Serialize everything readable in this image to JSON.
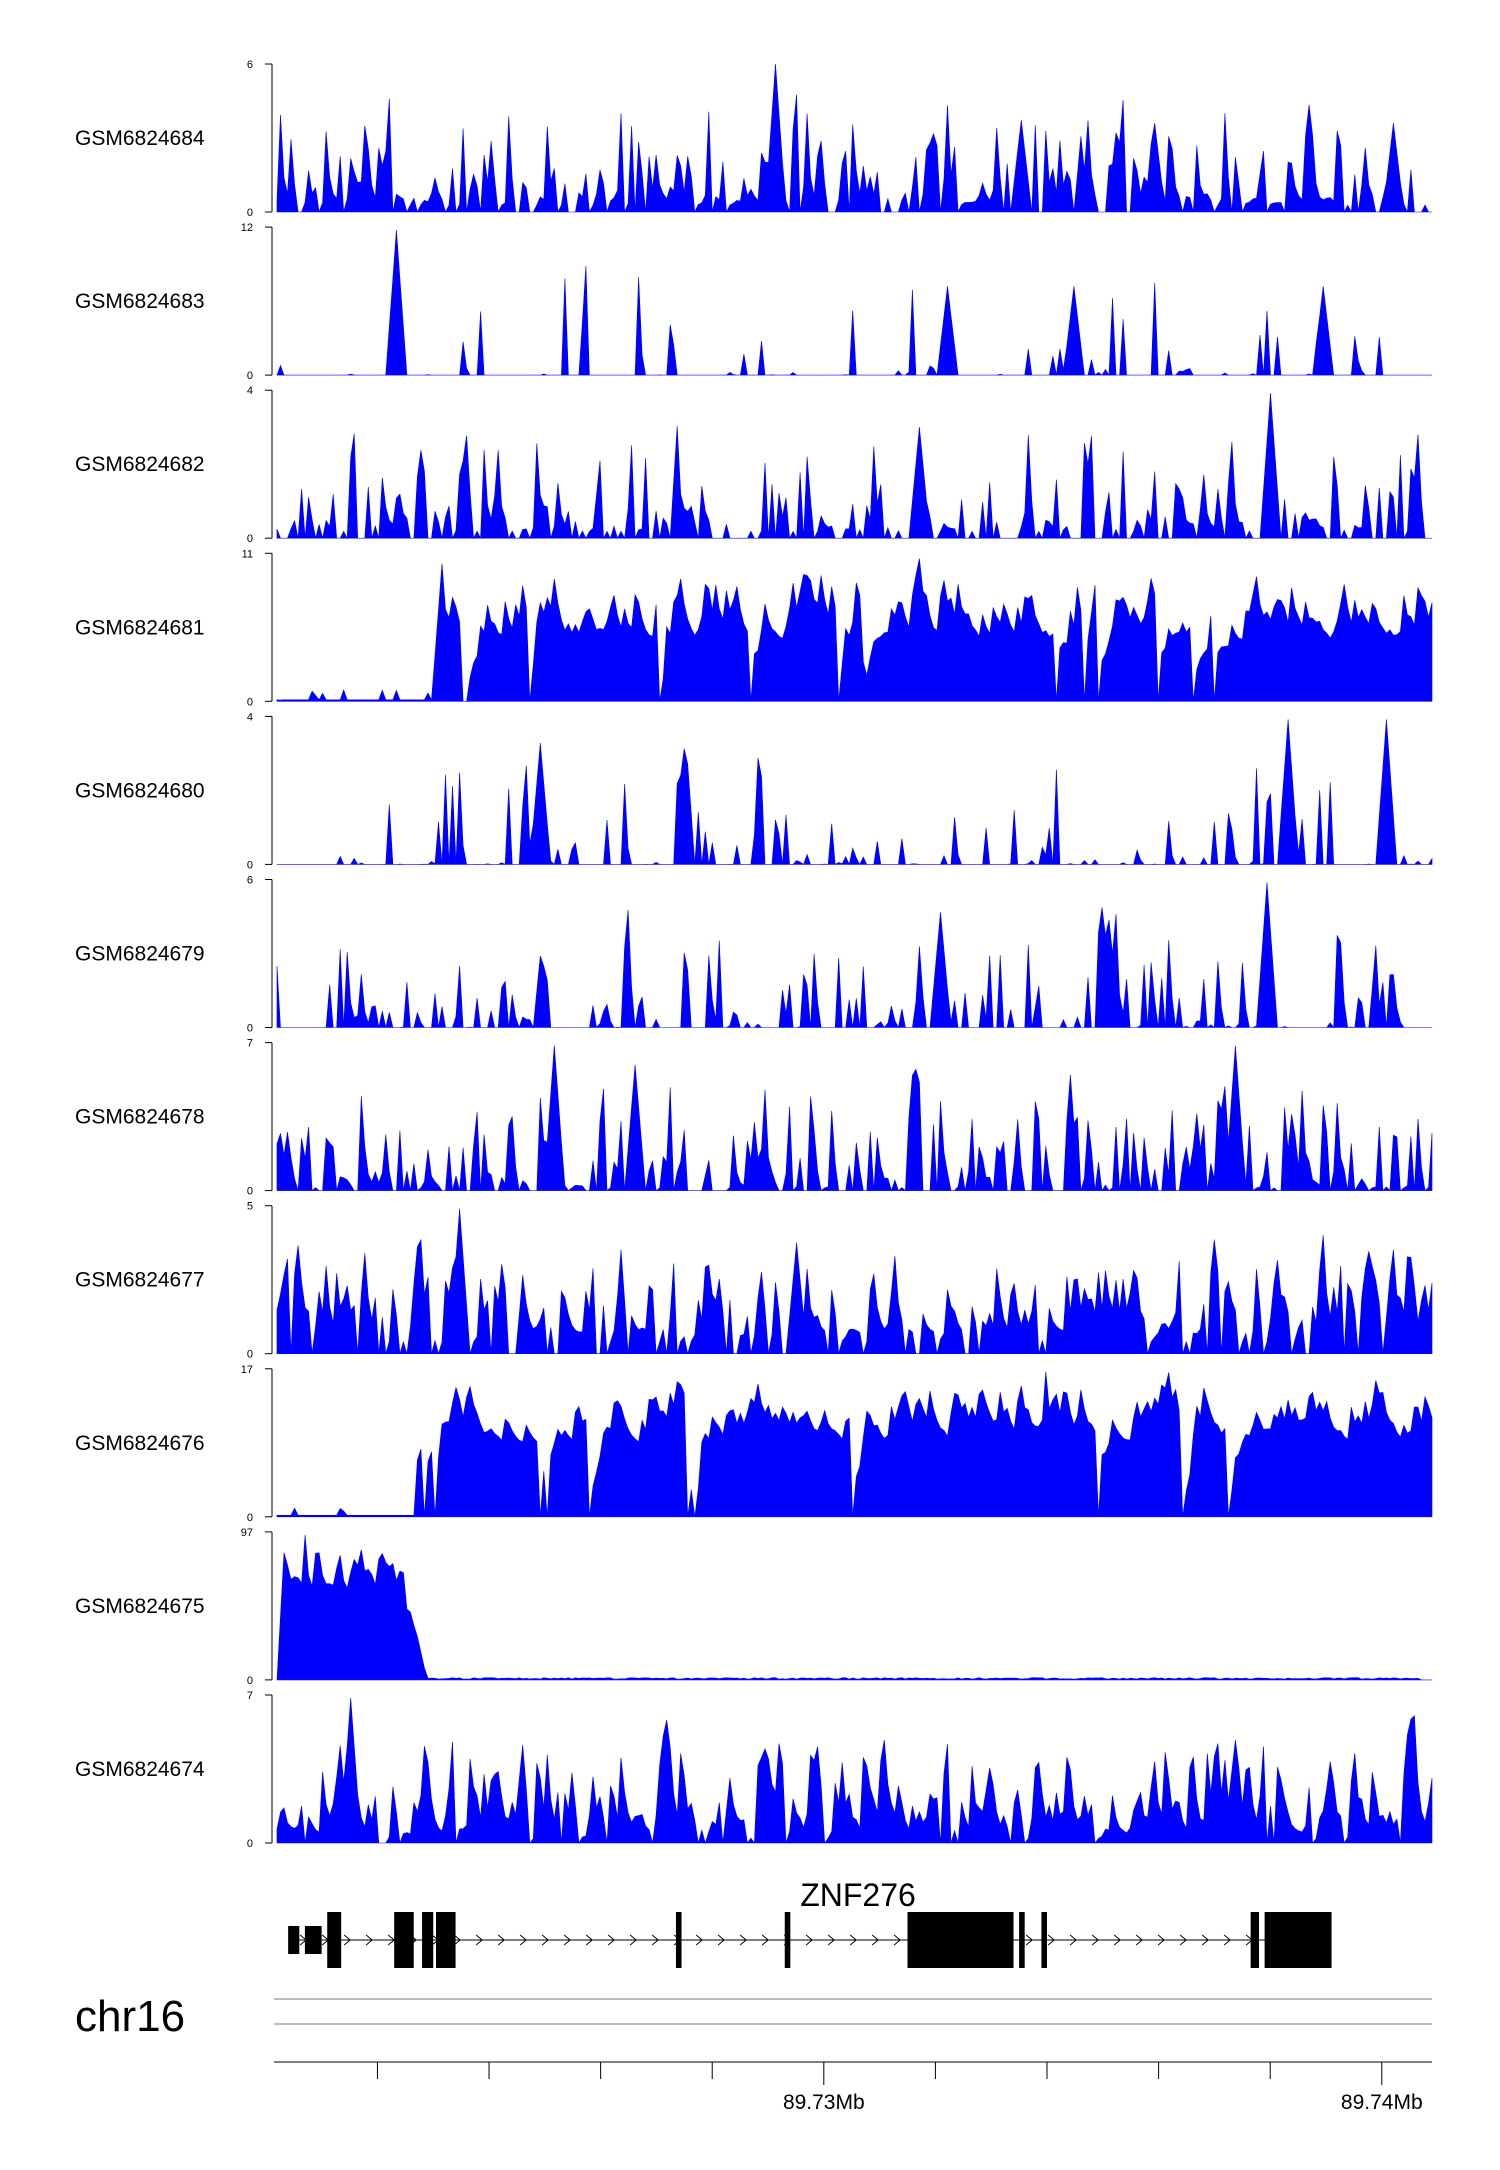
{
  "chart_data": {
    "type": "area",
    "chromosome": "chr16",
    "genomic_axis": {
      "tick_labels": [
        "89.73Mb",
        "89.74Mb"
      ],
      "labeled_ticks_mb": [
        89.73,
        89.74
      ],
      "minor_tick_step_mb": 0.002,
      "range_mb": [
        89.7202,
        89.7409
      ]
    },
    "gene": {
      "name": "ZNF276",
      "strand": "+",
      "exons_mb": [
        [
          89.7204,
          89.7206,
          "utr"
        ],
        [
          89.7207,
          89.721,
          "utr"
        ],
        [
          89.7211,
          89.72135,
          "coding"
        ],
        [
          89.7223,
          89.72265,
          "coding"
        ],
        [
          89.7228,
          89.723,
          "coding"
        ],
        [
          89.72305,
          89.7234,
          "coding"
        ],
        [
          89.72735,
          89.72745,
          "coding"
        ],
        [
          89.7293,
          89.7294,
          "coding"
        ],
        [
          89.7315,
          89.7334,
          "coding"
        ],
        [
          89.7335,
          89.7336,
          "coding"
        ],
        [
          89.7339,
          89.734,
          "coding"
        ],
        [
          89.73765,
          89.7378,
          "coding"
        ],
        [
          89.7379,
          89.7391,
          "coding"
        ]
      ]
    },
    "series": [
      {
        "name": "GSM6824684",
        "ymax": 6,
        "ylim_labels": [
          "0",
          "6"
        ],
        "shape": {
          "seed": 684,
          "density": 0.72,
          "spikiness": 0.9,
          "baseline": 0.05,
          "start_frac": 0.0,
          "end_frac": 0.995,
          "peaks": [
            [
              0.431,
              1.0
            ],
            [
              0.645,
              0.62
            ],
            [
              0.76,
              0.6
            ],
            [
              0.965,
              0.6
            ]
          ]
        }
      },
      {
        "name": "GSM6824683",
        "ymax": 12,
        "ylim_labels": [
          "0",
          "12"
        ],
        "shape": {
          "seed": 683,
          "density": 0.25,
          "spikiness": 1.0,
          "baseline": 0.0,
          "start_frac": 0.0,
          "end_frac": 0.955,
          "peaks": [
            [
              0.105,
              0.98
            ],
            [
              0.58,
              0.6
            ],
            [
              0.69,
              0.6
            ],
            [
              0.905,
              0.6
            ]
          ]
        }
      },
      {
        "name": "GSM6824682",
        "ymax": 4,
        "ylim_labels": [
          "0",
          "4"
        ],
        "shape": {
          "seed": 682,
          "density": 0.6,
          "spikiness": 0.9,
          "baseline": 0.05,
          "start_frac": 0.0,
          "end_frac": 1.0,
          "peaks": [
            [
              0.86,
              0.98
            ],
            [
              0.555,
              0.75
            ]
          ]
        }
      },
      {
        "name": "GSM6824681",
        "ymax": 11,
        "ylim_labels": [
          "0",
          "11"
        ],
        "shape": {
          "seed": 681,
          "density": 0.95,
          "spikiness": 0.5,
          "baseline": 0.25,
          "start_frac": 0.0,
          "end_frac": 1.0,
          "lowstart_frac": 0.14,
          "peaks": [
            [
              0.145,
              0.93
            ],
            [
              0.46,
              0.85
            ],
            [
              0.5,
              0.8
            ]
          ]
        }
      },
      {
        "name": "GSM6824680",
        "ymax": 4,
        "ylim_labels": [
          "0",
          "4"
        ],
        "shape": {
          "seed": 680,
          "density": 0.35,
          "spikiness": 1.0,
          "baseline": 0.0,
          "start_frac": 0.04,
          "end_frac": 1.0,
          "peaks": [
            [
              0.875,
              0.98
            ],
            [
              0.96,
              0.98
            ],
            [
              0.23,
              0.82
            ]
          ]
        }
      },
      {
        "name": "GSM6824679",
        "ymax": 6,
        "ylim_labels": [
          "0",
          "6"
        ],
        "shape": {
          "seed": 679,
          "density": 0.5,
          "spikiness": 0.9,
          "baseline": 0.0,
          "start_frac": 0.0,
          "end_frac": 0.975,
          "peaks": [
            [
              0.855,
              0.98
            ],
            [
              0.575,
              0.78
            ],
            [
              0.72,
              0.7
            ]
          ]
        }
      },
      {
        "name": "GSM6824678",
        "ymax": 7,
        "ylim_labels": [
          "0",
          "7"
        ],
        "shape": {
          "seed": 678,
          "density": 0.7,
          "spikiness": 0.9,
          "baseline": 0.02,
          "start_frac": 0.0,
          "end_frac": 1.0,
          "peaks": [
            [
              0.24,
              0.98
            ],
            [
              0.83,
              0.98
            ],
            [
              0.31,
              0.85
            ]
          ]
        }
      },
      {
        "name": "GSM6824677",
        "ymax": 5,
        "ylim_labels": [
          "0",
          "5"
        ],
        "shape": {
          "seed": 677,
          "density": 0.85,
          "spikiness": 0.75,
          "baseline": 0.1,
          "start_frac": 0.0,
          "end_frac": 1.0,
          "peaks": [
            [
              0.16,
              0.98
            ],
            [
              0.45,
              0.75
            ],
            [
              0.98,
              0.65
            ]
          ]
        }
      },
      {
        "name": "GSM6824676",
        "ymax": 17,
        "ylim_labels": [
          "0",
          "17"
        ],
        "shape": {
          "seed": 676,
          "density": 0.95,
          "spikiness": 0.45,
          "baseline": 0.3,
          "start_frac": 0.0,
          "end_frac": 1.0,
          "lowstart_frac": 0.12,
          "peaks": [
            [
              0.168,
              0.88
            ],
            [
              0.665,
              0.98
            ],
            [
              0.44,
              0.7
            ]
          ]
        }
      },
      {
        "name": "GSM6824675",
        "ymax": 97,
        "ylim_labels": [
          "0",
          "97"
        ],
        "shape": {
          "seed": 675,
          "density": 1.0,
          "spikiness": 0.2,
          "baseline": 0.005,
          "start_frac": 0.0,
          "end_frac": 0.988,
          "bulk": [
            [
              0.0,
              0.13,
              0.86
            ]
          ],
          "peaks": [
            [
              0.025,
              0.98
            ],
            [
              0.075,
              0.88
            ]
          ]
        }
      },
      {
        "name": "GSM6824674",
        "ymax": 7,
        "ylim_labels": [
          "0",
          "7"
        ],
        "shape": {
          "seed": 674,
          "density": 0.9,
          "spikiness": 0.7,
          "baseline": 0.04,
          "start_frac": 0.0,
          "end_frac": 1.0,
          "peaks": [
            [
              0.065,
              0.98
            ],
            [
              0.055,
              0.6
            ],
            [
              0.91,
              0.55
            ],
            [
              0.66,
              0.5
            ]
          ]
        }
      }
    ]
  },
  "style": {
    "fill_color": "#0000ff",
    "axis_color": "#000000",
    "gene_color": "#000000"
  }
}
